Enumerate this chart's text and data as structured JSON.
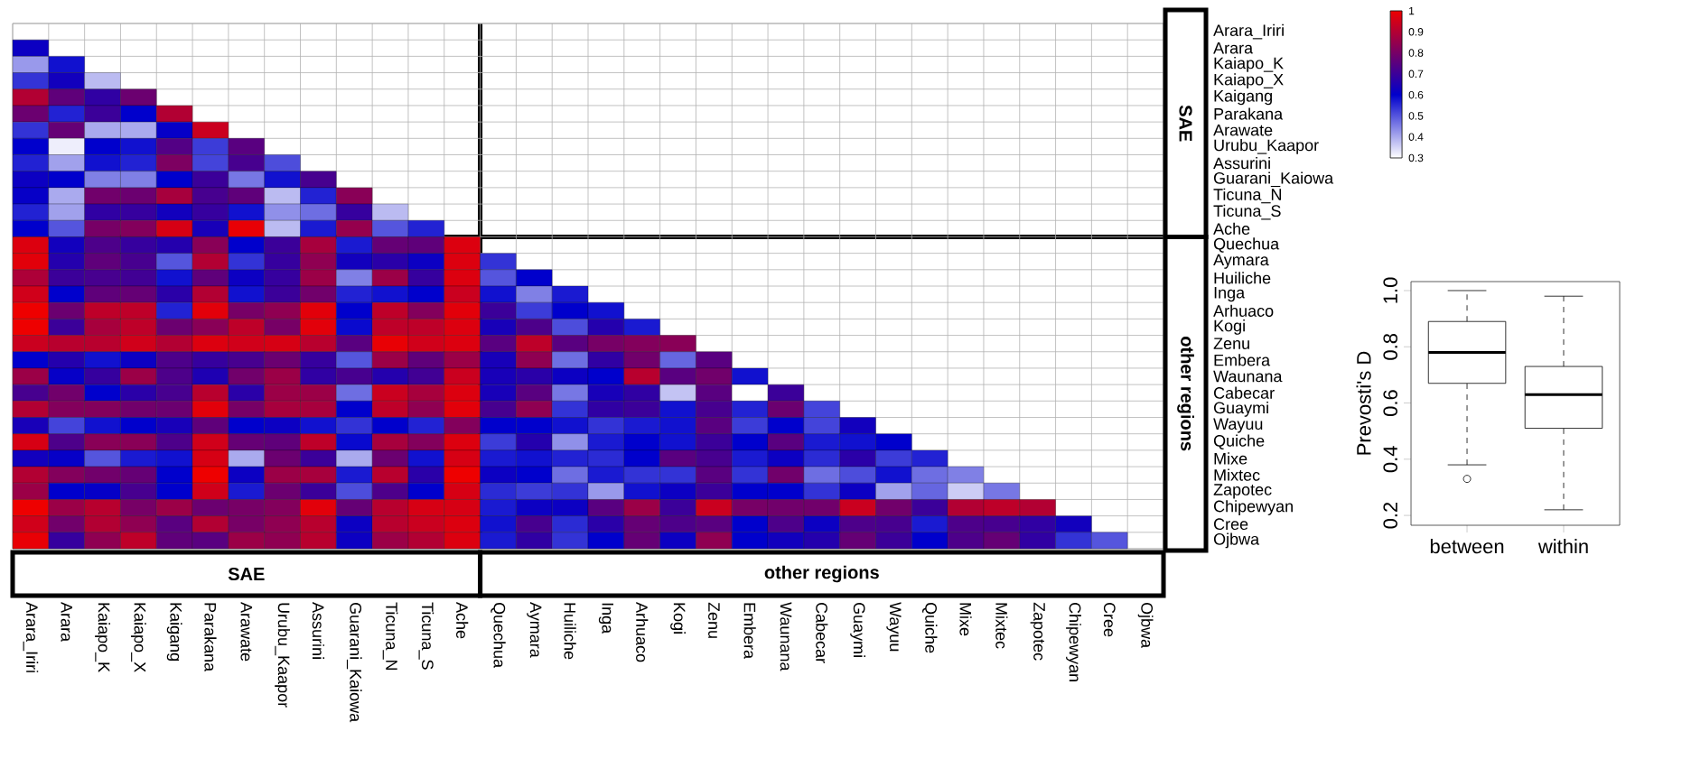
{
  "chart_data": [
    {
      "type": "heatmap",
      "categories": [
        "Arara_Iriri",
        "Arara",
        "Kaiapo_K",
        "Kaiapo_X",
        "Kaigang",
        "Parakana",
        "Arawate",
        "Urubu_Kaapor",
        "Assurini",
        "Guarani_Kaiowa",
        "Ticuna_N",
        "Ticuna_S",
        "Ache",
        "Quechua",
        "Aymara",
        "Huiliche",
        "Inga",
        "Arhuaco",
        "Kogi",
        "Zenu",
        "Embera",
        "Waunana",
        "Cabecar",
        "Guaymi",
        "Wayuu",
        "Quiche",
        "Mixe",
        "Mixtec",
        "Zapotec",
        "Chipewyan",
        "Cree",
        "Ojbwa"
      ],
      "y_categories": [
        "Arara_Iriri",
        "Arara",
        "Kaiapo_K",
        "Kaiapo_X",
        "Kaigang",
        "Parakana",
        "Arawate",
        "Urubu_Kaapor",
        "Assurini",
        "Guarani_Kaiowa",
        "Ticuna_N",
        "Ticuna_S",
        "Ache",
        "Quechua",
        "Aymara",
        "Huiliche",
        "Inga",
        "Arhuaco",
        "Kogi",
        "Zenu",
        "Embera",
        "Waunana",
        "Cabecar",
        "Guaymi",
        "Wayuu",
        "Quiche",
        "Mixe",
        "Mixtec",
        "Zapotec",
        "Chipewyan",
        "Cree",
        "Ojbwa"
      ],
      "cells": [
        [
          null,
          null,
          null,
          null,
          null,
          null,
          null,
          null,
          null,
          null,
          null,
          null,
          null,
          null,
          null,
          null,
          null,
          null,
          null,
          null,
          null,
          null,
          null,
          null,
          null,
          null,
          null,
          null,
          null,
          null,
          null,
          null
        ],
        [
          0.62,
          null,
          null,
          null,
          null,
          null,
          null,
          null,
          null,
          null,
          null,
          null,
          null,
          null,
          null,
          null,
          null,
          null,
          null,
          null,
          null,
          null,
          null,
          null,
          null,
          null,
          null,
          null,
          null,
          null,
          null,
          null
        ],
        [
          0.42,
          0.58,
          null,
          null,
          null,
          null,
          null,
          null,
          null,
          null,
          null,
          null,
          null,
          null,
          null,
          null,
          null,
          null,
          null,
          null,
          null,
          null,
          null,
          null,
          null,
          null,
          null,
          null,
          null,
          null,
          null,
          null
        ],
        [
          0.54,
          0.63,
          0.38,
          null,
          null,
          null,
          null,
          null,
          null,
          null,
          null,
          null,
          null,
          null,
          null,
          null,
          null,
          null,
          null,
          null,
          null,
          null,
          null,
          null,
          null,
          null,
          null,
          null,
          null,
          null,
          null,
          null
        ],
        [
          0.9,
          0.76,
          0.68,
          0.78,
          null,
          null,
          null,
          null,
          null,
          null,
          null,
          null,
          null,
          null,
          null,
          null,
          null,
          null,
          null,
          null,
          null,
          null,
          null,
          null,
          null,
          null,
          null,
          null,
          null,
          null,
          null,
          null
        ],
        [
          0.78,
          0.56,
          0.7,
          0.6,
          0.9,
          null,
          null,
          null,
          null,
          null,
          null,
          null,
          null,
          null,
          null,
          null,
          null,
          null,
          null,
          null,
          null,
          null,
          null,
          null,
          null,
          null,
          null,
          null,
          null,
          null,
          null,
          null
        ],
        [
          0.54,
          0.77,
          0.4,
          0.4,
          0.61,
          0.94,
          null,
          null,
          null,
          null,
          null,
          null,
          null,
          null,
          null,
          null,
          null,
          null,
          null,
          null,
          null,
          null,
          null,
          null,
          null,
          null,
          null,
          null,
          null,
          null,
          null,
          null
        ],
        [
          0.6,
          0.32,
          0.6,
          0.58,
          0.74,
          0.53,
          0.75,
          null,
          null,
          null,
          null,
          null,
          null,
          null,
          null,
          null,
          null,
          null,
          null,
          null,
          null,
          null,
          null,
          null,
          null,
          null,
          null,
          null,
          null,
          null,
          null,
          null
        ],
        [
          0.56,
          0.41,
          0.58,
          0.56,
          0.81,
          0.52,
          0.72,
          0.51,
          null,
          null,
          null,
          null,
          null,
          null,
          null,
          null,
          null,
          null,
          null,
          null,
          null,
          null,
          null,
          null,
          null,
          null,
          null,
          null,
          null,
          null,
          null,
          null
        ],
        [
          0.62,
          0.6,
          0.45,
          0.45,
          0.6,
          0.7,
          0.46,
          0.58,
          0.72,
          null,
          null,
          null,
          null,
          null,
          null,
          null,
          null,
          null,
          null,
          null,
          null,
          null,
          null,
          null,
          null,
          null,
          null,
          null,
          null,
          null,
          null,
          null
        ],
        [
          0.61,
          0.4,
          0.79,
          0.78,
          0.88,
          0.72,
          0.76,
          0.38,
          0.56,
          0.83,
          null,
          null,
          null,
          null,
          null,
          null,
          null,
          null,
          null,
          null,
          null,
          null,
          null,
          null,
          null,
          null,
          null,
          null,
          null,
          null,
          null,
          null
        ],
        [
          0.56,
          0.41,
          0.68,
          0.69,
          0.63,
          0.69,
          0.58,
          0.43,
          0.47,
          0.69,
          0.38,
          null,
          null,
          null,
          null,
          null,
          null,
          null,
          null,
          null,
          null,
          null,
          null,
          null,
          null,
          null,
          null,
          null,
          null,
          null,
          null,
          null
        ],
        [
          0.6,
          0.5,
          0.8,
          0.82,
          0.96,
          0.64,
          0.99,
          0.38,
          0.57,
          0.85,
          0.5,
          0.56,
          null,
          null,
          null,
          null,
          null,
          null,
          null,
          null,
          null,
          null,
          null,
          null,
          null,
          null,
          null,
          null,
          null,
          null,
          null,
          null
        ],
        [
          0.97,
          0.63,
          0.73,
          0.69,
          0.66,
          0.83,
          0.6,
          0.7,
          0.88,
          0.57,
          0.77,
          0.76,
          0.97,
          null,
          null,
          null,
          null,
          null,
          null,
          null,
          null,
          null,
          null,
          null,
          null,
          null,
          null,
          null,
          null,
          null,
          null,
          null
        ],
        [
          0.98,
          0.66,
          0.76,
          0.72,
          0.5,
          0.9,
          0.54,
          0.69,
          0.84,
          0.63,
          0.67,
          0.62,
          0.97,
          0.54,
          null,
          null,
          null,
          null,
          null,
          null,
          null,
          null,
          null,
          null,
          null,
          null,
          null,
          null,
          null,
          null,
          null,
          null
        ],
        [
          0.89,
          0.7,
          0.72,
          0.71,
          0.58,
          0.76,
          0.62,
          0.69,
          0.86,
          0.45,
          0.86,
          0.69,
          0.97,
          0.5,
          0.6,
          null,
          null,
          null,
          null,
          null,
          null,
          null,
          null,
          null,
          null,
          null,
          null,
          null,
          null,
          null,
          null,
          null
        ],
        [
          0.95,
          0.6,
          0.76,
          0.77,
          0.67,
          0.9,
          0.58,
          0.7,
          0.79,
          0.56,
          0.58,
          0.6,
          0.94,
          0.58,
          0.45,
          0.57,
          null,
          null,
          null,
          null,
          null,
          null,
          null,
          null,
          null,
          null,
          null,
          null,
          null,
          null,
          null,
          null
        ],
        [
          1,
          0.78,
          0.92,
          0.92,
          0.56,
          0.98,
          0.8,
          0.84,
          0.98,
          0.6,
          0.92,
          0.82,
          0.98,
          0.7,
          0.53,
          0.6,
          0.58,
          null,
          null,
          null,
          null,
          null,
          null,
          null,
          null,
          null,
          null,
          null,
          null,
          null,
          null,
          null
        ],
        [
          1,
          0.7,
          0.88,
          0.92,
          0.78,
          0.83,
          0.92,
          0.8,
          0.98,
          0.59,
          0.92,
          0.92,
          0.97,
          0.64,
          0.73,
          0.51,
          0.66,
          0.57,
          null,
          null,
          null,
          null,
          null,
          null,
          null,
          null,
          null,
          null,
          null,
          null,
          null,
          null
        ],
        [
          0.94,
          0.91,
          0.91,
          0.95,
          0.9,
          0.97,
          0.95,
          0.96,
          0.91,
          0.75,
          0.99,
          0.95,
          0.97,
          0.75,
          0.92,
          0.75,
          0.8,
          0.82,
          0.83,
          null,
          null,
          null,
          null,
          null,
          null,
          null,
          null,
          null,
          null,
          null,
          null,
          null
        ],
        [
          0.6,
          0.66,
          0.58,
          0.62,
          0.73,
          0.69,
          0.72,
          0.78,
          0.69,
          0.5,
          0.86,
          0.76,
          0.86,
          0.64,
          0.84,
          0.47,
          0.68,
          0.79,
          0.48,
          0.75,
          null,
          null,
          null,
          null,
          null,
          null,
          null,
          null,
          null,
          null,
          null,
          null
        ],
        [
          0.86,
          0.61,
          0.69,
          0.86,
          0.73,
          0.65,
          0.79,
          0.86,
          0.68,
          0.72,
          0.66,
          0.71,
          0.94,
          0.64,
          0.67,
          0.62,
          0.6,
          0.91,
          0.75,
          0.79,
          0.58,
          null,
          null,
          null,
          null,
          null,
          null,
          null,
          null,
          null,
          null,
          null
        ],
        [
          0.72,
          0.79,
          0.6,
          0.67,
          0.72,
          0.91,
          0.67,
          0.86,
          0.86,
          0.47,
          0.94,
          0.88,
          0.97,
          0.64,
          0.75,
          0.46,
          0.64,
          0.68,
          0.37,
          0.75,
          0.3,
          0.7,
          null,
          null,
          null,
          null,
          null,
          null,
          null,
          null,
          null,
          null
        ],
        [
          0.9,
          0.82,
          0.82,
          0.79,
          0.78,
          0.98,
          0.8,
          0.88,
          0.88,
          0.6,
          0.92,
          0.84,
          0.98,
          0.72,
          0.84,
          0.54,
          0.68,
          0.7,
          0.58,
          0.72,
          0.56,
          0.78,
          0.52,
          null,
          null,
          null,
          null,
          null,
          null,
          null,
          null,
          null
        ],
        [
          0.64,
          0.52,
          0.58,
          0.6,
          0.64,
          0.76,
          0.6,
          0.62,
          0.58,
          0.54,
          0.6,
          0.56,
          0.82,
          0.6,
          0.6,
          0.58,
          0.54,
          0.57,
          0.58,
          0.75,
          0.53,
          0.6,
          0.52,
          0.63,
          null,
          null,
          null,
          null,
          null,
          null,
          null,
          null
        ],
        [
          0.96,
          0.73,
          0.83,
          0.83,
          0.73,
          0.95,
          0.77,
          0.76,
          0.92,
          0.59,
          0.88,
          0.82,
          0.97,
          0.53,
          0.66,
          0.43,
          0.57,
          0.6,
          0.58,
          0.7,
          0.6,
          0.75,
          0.57,
          0.58,
          0.6,
          null,
          null,
          null,
          null,
          null,
          null,
          null
        ],
        [
          0.63,
          0.61,
          0.5,
          0.57,
          0.58,
          0.96,
          0.4,
          0.78,
          0.7,
          0.4,
          0.78,
          0.58,
          0.96,
          0.57,
          0.58,
          0.56,
          0.55,
          0.6,
          0.75,
          0.72,
          0.57,
          0.62,
          0.55,
          0.67,
          0.53,
          0.56,
          null,
          null,
          null,
          null,
          null,
          null
        ],
        [
          0.9,
          0.82,
          0.79,
          0.77,
          0.6,
          1,
          0.62,
          0.86,
          0.88,
          0.57,
          0.91,
          0.67,
          1,
          0.62,
          0.6,
          0.47,
          0.57,
          0.54,
          0.54,
          0.75,
          0.54,
          0.79,
          0.47,
          0.51,
          0.58,
          0.47,
          0.45,
          null,
          null,
          null,
          null,
          null
        ],
        [
          0.86,
          0.6,
          0.61,
          0.72,
          0.6,
          0.95,
          0.57,
          0.78,
          0.7,
          0.51,
          0.73,
          0.6,
          0.96,
          0.55,
          0.53,
          0.54,
          0.42,
          0.58,
          0.62,
          0.7,
          0.6,
          0.6,
          0.54,
          0.62,
          0.41,
          0.48,
          0.36,
          0.46,
          null,
          null,
          null,
          null
        ],
        [
          1,
          0.86,
          0.91,
          0.8,
          0.86,
          0.78,
          0.8,
          0.82,
          0.98,
          0.77,
          0.91,
          0.96,
          0.96,
          0.57,
          0.62,
          0.62,
          0.75,
          0.86,
          0.7,
          0.94,
          0.8,
          0.79,
          0.79,
          0.94,
          0.79,
          0.7,
          0.9,
          0.92,
          0.9,
          null,
          null,
          null
        ],
        [
          0.95,
          0.79,
          0.9,
          0.84,
          0.75,
          0.9,
          0.8,
          0.84,
          0.91,
          0.62,
          0.91,
          0.94,
          0.97,
          0.58,
          0.72,
          0.55,
          0.67,
          0.77,
          0.73,
          0.75,
          0.6,
          0.73,
          0.62,
          0.73,
          0.72,
          0.57,
          0.73,
          0.72,
          0.68,
          0.63,
          null,
          null
        ],
        [
          0.99,
          0.69,
          0.84,
          0.92,
          0.76,
          0.75,
          0.86,
          0.84,
          0.91,
          0.62,
          0.86,
          0.9,
          0.97,
          0.57,
          0.68,
          0.54,
          0.6,
          0.77,
          0.62,
          0.84,
          0.6,
          0.63,
          0.66,
          0.77,
          0.7,
          0.6,
          0.73,
          0.77,
          0.68,
          0.54,
          0.5,
          null
        ]
      ],
      "clim": [
        0.3,
        1
      ],
      "cticks": [
        0.3,
        0.4,
        0.5,
        0.6,
        0.7,
        0.8,
        0.9,
        1
      ],
      "grid": true,
      "annotations": [
        "SAE",
        "other regions",
        "SAE",
        "other regions"
      ]
    },
    {
      "type": "box",
      "categories": [
        "between",
        "within"
      ],
      "boxes": [
        {
          "low": 0.38,
          "q1": 0.67,
          "median": 0.78,
          "q3": 0.89,
          "high": 1.0,
          "outliers": [
            0.33
          ]
        },
        {
          "low": 0.22,
          "q1": 0.51,
          "median": 0.63,
          "q3": 0.73,
          "high": 0.98
        }
      ],
      "ylabel": "Prevosti's D",
      "ylim": [
        0.165,
        1.032
      ],
      "yticks": [
        {
          "value": 0.2,
          "label": "0.2"
        },
        {
          "value": 0.4,
          "label": "0.4"
        },
        {
          "value": 0.6,
          "label": "0.6"
        },
        {
          "value": 0.8,
          "label": "0.8"
        },
        {
          "value": 1.0,
          "label": "1.0"
        }
      ]
    }
  ]
}
